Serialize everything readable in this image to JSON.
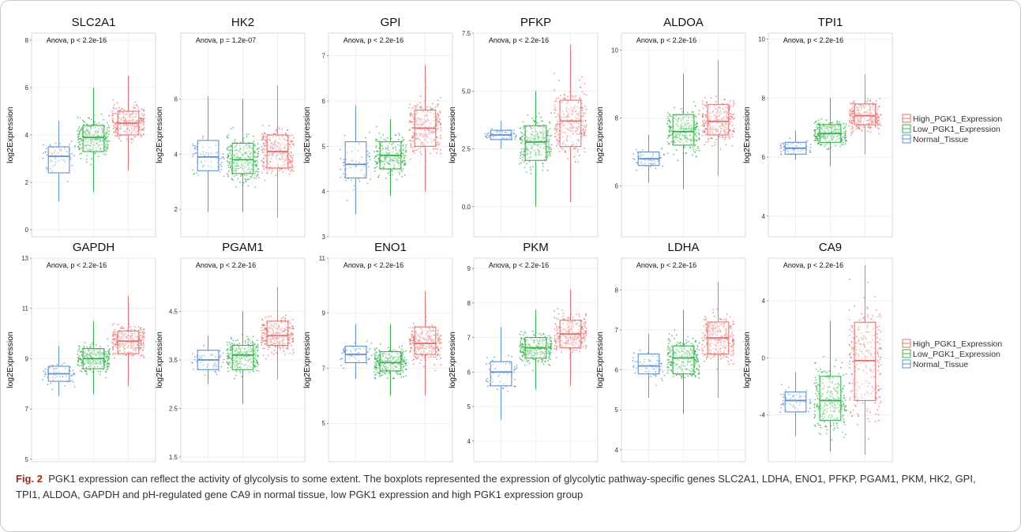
{
  "caption": {
    "label": "Fig. 2",
    "text": "PGK1 expression can reflect the activity of glycolysis to some extent. The boxplots represented the expression of glycolytic pathway-specific genes SLC2A1, LDHA, ENO1, PFKP, PGAM1, PKM, HK2, GPI, TPI1, ALDOA, GAPDH and pH-regulated gene CA9 in normal tissue, low PGK1 expression and high PGK1 expression group"
  },
  "legend": {
    "entries": [
      "High_PGK1_Expression",
      "Low_PGK1_Expression",
      "Normal_Tissue"
    ],
    "colors": [
      "#f06e6a",
      "#2fb548",
      "#5a8fe0"
    ],
    "placement": "right"
  },
  "chart_data": [
    {
      "type": "box",
      "title": "SLC2A1",
      "annotation": "Anova, p < 2.2e-16",
      "ylabel": "log2Expression",
      "ylim": [
        -0.3,
        8.3
      ],
      "yticks": [
        0,
        2,
        4,
        6,
        8
      ],
      "groups": [
        "Normal_Tissue",
        "Low_PGK1_Expression",
        "High_PGK1_Expression"
      ],
      "series": [
        {
          "name": "Normal_Tissue",
          "q1": 2.4,
          "median": 3.1,
          "q3": 3.5,
          "whisker_low": 1.2,
          "whisker_high": 4.6
        },
        {
          "name": "Low_PGK1_Expression",
          "q1": 3.3,
          "median": 3.9,
          "q3": 4.4,
          "whisker_low": 1.6,
          "whisker_high": 6.0
        },
        {
          "name": "High_PGK1_Expression",
          "q1": 4.0,
          "median": 4.5,
          "q3": 5.0,
          "whisker_low": 2.5,
          "whisker_high": 6.5
        }
      ]
    },
    {
      "type": "box",
      "title": "HK2",
      "annotation": "Anova, p = 1.2e-07",
      "ylabel": "log2Expression",
      "ylim": [
        1.0,
        8.4
      ],
      "yticks": [
        2,
        4,
        6
      ],
      "groups": [
        "Normal_Tissue",
        "Low_PGK1_Expression",
        "High_PGK1_Expression"
      ],
      "series": [
        {
          "name": "Normal_Tissue",
          "q1": 3.4,
          "median": 3.9,
          "q3": 4.5,
          "whisker_low": 1.9,
          "whisker_high": 6.1
        },
        {
          "name": "Low_PGK1_Expression",
          "q1": 3.3,
          "median": 3.8,
          "q3": 4.4,
          "whisker_low": 1.9,
          "whisker_high": 6.0
        },
        {
          "name": "High_PGK1_Expression",
          "q1": 3.5,
          "median": 4.1,
          "q3": 4.7,
          "whisker_low": 1.7,
          "whisker_high": 6.5
        }
      ]
    },
    {
      "type": "box",
      "title": "GPI",
      "annotation": "Anova, p < 2.2e-16",
      "ylabel": "log2Expression",
      "ylim": [
        3.0,
        7.5
      ],
      "yticks": [
        3,
        4,
        5,
        6,
        7
      ],
      "groups": [
        "Normal_Tissue",
        "Low_PGK1_Expression",
        "High_PGK1_Expression"
      ],
      "series": [
        {
          "name": "Normal_Tissue",
          "q1": 4.3,
          "median": 4.6,
          "q3": 5.1,
          "whisker_low": 3.5,
          "whisker_high": 5.9
        },
        {
          "name": "Low_PGK1_Expression",
          "q1": 4.5,
          "median": 4.8,
          "q3": 5.1,
          "whisker_low": 3.9,
          "whisker_high": 5.6
        },
        {
          "name": "High_PGK1_Expression",
          "q1": 5.0,
          "median": 5.4,
          "q3": 5.8,
          "whisker_low": 4.0,
          "whisker_high": 6.8
        }
      ]
    },
    {
      "type": "box",
      "title": "PFKP",
      "annotation": "Anova, p < 2.2e-16",
      "ylabel": "log2Expression",
      "ylim": [
        -1.3,
        7.5
      ],
      "yticks": [
        0.0,
        2.5,
        5.0,
        7.5
      ],
      "groups": [
        "Normal_Tissue",
        "Low_PGK1_Expression",
        "High_PGK1_Expression"
      ],
      "series": [
        {
          "name": "Normal_Tissue",
          "q1": 2.9,
          "median": 3.1,
          "q3": 3.3,
          "whisker_low": 2.5,
          "whisker_high": 3.7
        },
        {
          "name": "Low_PGK1_Expression",
          "q1": 2.0,
          "median": 2.8,
          "q3": 3.5,
          "whisker_low": 0.0,
          "whisker_high": 5.0
        },
        {
          "name": "High_PGK1_Expression",
          "q1": 2.6,
          "median": 3.7,
          "q3": 4.6,
          "whisker_low": 0.2,
          "whisker_high": 7.0
        }
      ]
    },
    {
      "type": "box",
      "title": "ALDOA",
      "annotation": "Anova, p < 2.2e-16",
      "ylabel": "log2Expression",
      "ylim": [
        4.5,
        10.5
      ],
      "yticks": [
        6,
        8,
        10
      ],
      "groups": [
        "Normal_Tissue",
        "Low_PGK1_Expression",
        "High_PGK1_Expression"
      ],
      "series": [
        {
          "name": "Normal_Tissue",
          "q1": 6.6,
          "median": 6.8,
          "q3": 7.0,
          "whisker_low": 6.1,
          "whisker_high": 7.5
        },
        {
          "name": "Low_PGK1_Expression",
          "q1": 7.2,
          "median": 7.6,
          "q3": 8.1,
          "whisker_low": 5.9,
          "whisker_high": 9.3
        },
        {
          "name": "High_PGK1_Expression",
          "q1": 7.5,
          "median": 7.9,
          "q3": 8.4,
          "whisker_low": 6.3,
          "whisker_high": 9.7
        }
      ]
    },
    {
      "type": "box",
      "title": "TPI1",
      "annotation": "Anova, p < 2.2e-16",
      "ylabel": "log2Expression",
      "ylim": [
        3.3,
        10.2
      ],
      "yticks": [
        4,
        6,
        8,
        10
      ],
      "groups": [
        "Normal_Tissue",
        "Low_PGK1_Expression",
        "High_PGK1_Expression"
      ],
      "series": [
        {
          "name": "Normal_Tissue",
          "q1": 6.1,
          "median": 6.3,
          "q3": 6.5,
          "whisker_low": 5.9,
          "whisker_high": 6.9
        },
        {
          "name": "Low_PGK1_Expression",
          "q1": 6.5,
          "median": 6.8,
          "q3": 7.1,
          "whisker_low": 5.7,
          "whisker_high": 8.0
        },
        {
          "name": "High_PGK1_Expression",
          "q1": 7.1,
          "median": 7.4,
          "q3": 7.8,
          "whisker_low": 6.1,
          "whisker_high": 8.8
        }
      ]
    },
    {
      "type": "box",
      "title": "GAPDH",
      "annotation": "Anova, p < 2.2e-16",
      "ylabel": "log2Expression",
      "ylim": [
        4.9,
        13.0
      ],
      "yticks": [
        5,
        7,
        9,
        11,
        13
      ],
      "groups": [
        "Normal_Tissue",
        "Low_PGK1_Expression",
        "High_PGK1_Expression"
      ],
      "series": [
        {
          "name": "Normal_Tissue",
          "q1": 8.1,
          "median": 8.4,
          "q3": 8.7,
          "whisker_low": 7.5,
          "whisker_high": 9.5
        },
        {
          "name": "Low_PGK1_Expression",
          "q1": 8.6,
          "median": 9.0,
          "q3": 9.4,
          "whisker_low": 7.6,
          "whisker_high": 10.5
        },
        {
          "name": "High_PGK1_Expression",
          "q1": 9.2,
          "median": 9.7,
          "q3": 10.1,
          "whisker_low": 7.9,
          "whisker_high": 11.5
        }
      ]
    },
    {
      "type": "box",
      "title": "PGAM1",
      "annotation": "Anova, p < 2.2e-16",
      "ylabel": "log2Expression",
      "ylim": [
        1.4,
        5.6
      ],
      "yticks": [
        1.5,
        2.5,
        3.5,
        4.5
      ],
      "groups": [
        "Normal_Tissue",
        "Low_PGK1_Expression",
        "High_PGK1_Expression"
      ],
      "series": [
        {
          "name": "Normal_Tissue",
          "q1": 3.3,
          "median": 3.5,
          "q3": 3.7,
          "whisker_low": 3.0,
          "whisker_high": 4.0
        },
        {
          "name": "Low_PGK1_Expression",
          "q1": 3.3,
          "median": 3.6,
          "q3": 3.8,
          "whisker_low": 2.6,
          "whisker_high": 4.5
        },
        {
          "name": "High_PGK1_Expression",
          "q1": 3.8,
          "median": 4.0,
          "q3": 4.3,
          "whisker_low": 3.1,
          "whisker_high": 5.0
        }
      ]
    },
    {
      "type": "box",
      "title": "ENO1",
      "annotation": "Anova, p < 2.2e-16",
      "ylabel": "log2Expression",
      "ylim": [
        3.6,
        11.0
      ],
      "yticks": [
        5,
        7,
        9,
        11
      ],
      "groups": [
        "Normal_Tissue",
        "Low_PGK1_Expression",
        "High_PGK1_Expression"
      ],
      "series": [
        {
          "name": "Normal_Tissue",
          "q1": 7.2,
          "median": 7.5,
          "q3": 7.8,
          "whisker_low": 6.6,
          "whisker_high": 8.6
        },
        {
          "name": "Low_PGK1_Expression",
          "q1": 6.9,
          "median": 7.2,
          "q3": 7.6,
          "whisker_low": 6.0,
          "whisker_high": 8.6
        },
        {
          "name": "High_PGK1_Expression",
          "q1": 7.5,
          "median": 7.9,
          "q3": 8.5,
          "whisker_low": 6.0,
          "whisker_high": 9.8
        }
      ]
    },
    {
      "type": "box",
      "title": "PKM",
      "annotation": "Anova, p < 2.2e-16",
      "ylabel": "log2Expression",
      "ylim": [
        3.4,
        9.3
      ],
      "yticks": [
        4,
        5,
        6,
        7,
        8,
        9
      ],
      "groups": [
        "Normal_Tissue",
        "Low_PGK1_Expression",
        "High_PGK1_Expression"
      ],
      "series": [
        {
          "name": "Normal_Tissue",
          "q1": 5.6,
          "median": 6.0,
          "q3": 6.3,
          "whisker_low": 4.6,
          "whisker_high": 7.3
        },
        {
          "name": "Low_PGK1_Expression",
          "q1": 6.4,
          "median": 6.7,
          "q3": 7.0,
          "whisker_low": 5.5,
          "whisker_high": 7.8
        },
        {
          "name": "High_PGK1_Expression",
          "q1": 6.7,
          "median": 7.1,
          "q3": 7.5,
          "whisker_low": 5.6,
          "whisker_high": 8.4
        }
      ]
    },
    {
      "type": "box",
      "title": "LDHA",
      "annotation": "Anova, p < 2.2e-16",
      "ylabel": "log2Expression",
      "ylim": [
        3.7,
        8.8
      ],
      "yticks": [
        4,
        5,
        6,
        7,
        8
      ],
      "groups": [
        "Normal_Tissue",
        "Low_PGK1_Expression",
        "High_PGK1_Expression"
      ],
      "series": [
        {
          "name": "Normal_Tissue",
          "q1": 5.9,
          "median": 6.1,
          "q3": 6.4,
          "whisker_low": 5.3,
          "whisker_high": 6.9
        },
        {
          "name": "Low_PGK1_Expression",
          "q1": 5.9,
          "median": 6.3,
          "q3": 6.6,
          "whisker_low": 4.9,
          "whisker_high": 7.5
        },
        {
          "name": "High_PGK1_Expression",
          "q1": 6.4,
          "median": 6.8,
          "q3": 7.2,
          "whisker_low": 5.3,
          "whisker_high": 8.2
        }
      ]
    },
    {
      "type": "box",
      "title": "CA9",
      "annotation": "Anova, p < 2.2e-16",
      "ylabel": "log2Expression",
      "ylim": [
        -7.3,
        7.0
      ],
      "yticks": [
        -4,
        0,
        4
      ],
      "groups": [
        "Normal_Tissue",
        "Low_PGK1_Expression",
        "High_PGK1_Expression"
      ],
      "series": [
        {
          "name": "Normal_Tissue",
          "q1": -3.8,
          "median": -3.0,
          "q3": -2.4,
          "whisker_low": -5.5,
          "whisker_high": -1.0
        },
        {
          "name": "Low_PGK1_Expression",
          "q1": -4.4,
          "median": -3.0,
          "q3": -1.3,
          "whisker_low": -6.6,
          "whisker_high": 2.6
        },
        {
          "name": "High_PGK1_Expression",
          "q1": -3.0,
          "median": -0.2,
          "q3": 2.5,
          "whisker_low": -6.8,
          "whisker_high": 6.5
        }
      ]
    }
  ]
}
